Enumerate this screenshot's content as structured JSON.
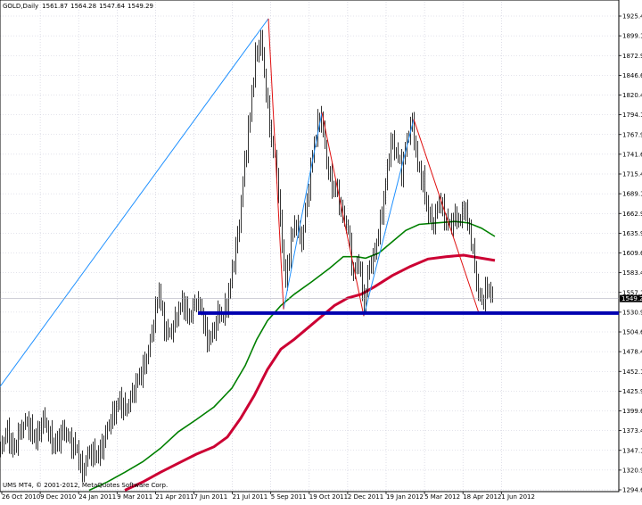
{
  "header": {
    "symbol_period": "GOLD,Daily",
    "ohlc": [
      "1561.87",
      "1564.28",
      "1547.64",
      "1549.29"
    ]
  },
  "footer": {
    "copyright": "UMS MT4, © 2001-2012, MetaQuotes Software Corp."
  },
  "colors": {
    "background": "#ffffff",
    "grid": "#c8c8d8",
    "candles": "#000000",
    "ma_fast": "#008000",
    "ma_slow": "#cc0033",
    "support_line": "#0000b0",
    "trend_up": "#1e90ff",
    "trend_down": "#e01010",
    "price_label_bg": "#000000",
    "price_label_text": "#ffffff"
  },
  "chart_data": {
    "type": "candlestick",
    "title": "GOLD,Daily",
    "price_ticks": [
      "1925.40",
      "1899.15",
      "1872.90",
      "1846.65",
      "1820.40",
      "1794.15",
      "1767.90",
      "1741.65",
      "1715.40",
      "1689.15",
      "1662.90",
      "1635.90",
      "1609.65",
      "1583.40",
      "1557.15",
      "1530.90",
      "1504.65",
      "1478.40",
      "1452.15",
      "1425.90",
      "1399.65",
      "1373.40",
      "1347.15",
      "1320.90",
      "1294.65"
    ],
    "ylim": [
      1294.65,
      1925.4
    ],
    "date_ticks": [
      "26 Oct 2010",
      "9 Dec 2010",
      "24 Jan 2011",
      "9 Mar 2011",
      "21 Apr 2011",
      "7 Jun 2011",
      "21 Jul 2011",
      "5 Sep 2011",
      "19 Oct 2011",
      "2 Dec 2011",
      "19 Jan 2012",
      "5 Mar 2012",
      "18 Apr 2012",
      "1 Jun 2012"
    ],
    "current_price": "1549.29",
    "grid": true,
    "price_path": [
      [
        0,
        1350
      ],
      [
        8,
        1372
      ],
      [
        15,
        1345
      ],
      [
        22,
        1375
      ],
      [
        30,
        1385
      ],
      [
        40,
        1360
      ],
      [
        48,
        1390
      ],
      [
        55,
        1368
      ],
      [
        62,
        1352
      ],
      [
        70,
        1375
      ],
      [
        78,
        1360
      ],
      [
        85,
        1350
      ],
      [
        92,
        1318
      ],
      [
        100,
        1345
      ],
      [
        110,
        1340
      ],
      [
        118,
        1368
      ],
      [
        126,
        1395
      ],
      [
        134,
        1412
      ],
      [
        142,
        1402
      ],
      [
        150,
        1430
      ],
      [
        158,
        1450
      ],
      [
        166,
        1478
      ],
      [
        172,
        1520
      ],
      [
        178,
        1560
      ],
      [
        183,
        1515
      ],
      [
        190,
        1500
      ],
      [
        198,
        1528
      ],
      [
        205,
        1545
      ],
      [
        212,
        1522
      ],
      [
        220,
        1550
      ],
      [
        226,
        1530
      ],
      [
        232,
        1495
      ],
      [
        238,
        1500
      ],
      [
        244,
        1530
      ],
      [
        250,
        1525
      ],
      [
        256,
        1555
      ],
      [
        262,
        1600
      ],
      [
        268,
        1650
      ],
      [
        274,
        1730
      ],
      [
        280,
        1795
      ],
      [
        286,
        1870
      ],
      [
        292,
        1895
      ],
      [
        298,
        1825
      ],
      [
        304,
        1760
      ],
      [
        310,
        1720
      ],
      [
        316,
        1620
      ],
      [
        320,
        1570
      ],
      [
        326,
        1630
      ],
      [
        332,
        1650
      ],
      [
        338,
        1625
      ],
      [
        344,
        1680
      ],
      [
        350,
        1740
      ],
      [
        356,
        1780
      ],
      [
        360,
        1795
      ],
      [
        366,
        1730
      ],
      [
        372,
        1700
      ],
      [
        378,
        1690
      ],
      [
        384,
        1660
      ],
      [
        390,
        1640
      ],
      [
        396,
        1580
      ],
      [
        402,
        1600
      ],
      [
        408,
        1540
      ],
      [
        414,
        1595
      ],
      [
        420,
        1610
      ],
      [
        426,
        1650
      ],
      [
        432,
        1700
      ],
      [
        438,
        1760
      ],
      [
        444,
        1745
      ],
      [
        450,
        1720
      ],
      [
        456,
        1760
      ],
      [
        462,
        1785
      ],
      [
        468,
        1725
      ],
      [
        474,
        1705
      ],
      [
        480,
        1660
      ],
      [
        486,
        1650
      ],
      [
        492,
        1680
      ],
      [
        498,
        1660
      ],
      [
        504,
        1645
      ],
      [
        510,
        1660
      ],
      [
        516,
        1650
      ],
      [
        520,
        1675
      ],
      [
        526,
        1640
      ],
      [
        532,
        1595
      ],
      [
        536,
        1555
      ],
      [
        540,
        1545
      ],
      [
        546,
        1565
      ],
      [
        552,
        1549
      ]
    ],
    "ma_fast": [
      [
        100,
        1294
      ],
      [
        120,
        1305
      ],
      [
        140,
        1318
      ],
      [
        160,
        1332
      ],
      [
        180,
        1350
      ],
      [
        200,
        1372
      ],
      [
        220,
        1388
      ],
      [
        240,
        1405
      ],
      [
        260,
        1430
      ],
      [
        275,
        1460
      ],
      [
        288,
        1495
      ],
      [
        300,
        1520
      ],
      [
        315,
        1540
      ],
      [
        330,
        1555
      ],
      [
        350,
        1572
      ],
      [
        370,
        1590
      ],
      [
        385,
        1605
      ],
      [
        400,
        1605
      ],
      [
        410,
        1603
      ],
      [
        425,
        1610
      ],
      [
        440,
        1625
      ],
      [
        455,
        1640
      ],
      [
        470,
        1648
      ],
      [
        490,
        1650
      ],
      [
        510,
        1652
      ],
      [
        525,
        1650
      ],
      [
        540,
        1643
      ],
      [
        555,
        1632
      ]
    ],
    "ma_slow": [
      [
        140,
        1294
      ],
      [
        160,
        1305
      ],
      [
        180,
        1318
      ],
      [
        200,
        1330
      ],
      [
        220,
        1342
      ],
      [
        240,
        1352
      ],
      [
        255,
        1365
      ],
      [
        270,
        1390
      ],
      [
        285,
        1420
      ],
      [
        300,
        1455
      ],
      [
        315,
        1482
      ],
      [
        330,
        1495
      ],
      [
        345,
        1510
      ],
      [
        360,
        1525
      ],
      [
        375,
        1540
      ],
      [
        390,
        1550
      ],
      [
        405,
        1555
      ],
      [
        420,
        1565
      ],
      [
        440,
        1580
      ],
      [
        460,
        1592
      ],
      [
        480,
        1602
      ],
      [
        500,
        1605
      ],
      [
        520,
        1607
      ],
      [
        540,
        1603
      ],
      [
        555,
        1600
      ]
    ],
    "support_line": {
      "x1": 222,
      "x2": 700,
      "y": 1530
    },
    "trend_up_lines": [
      [
        [
          0,
          1432
        ],
        [
          301,
          1922
        ]
      ],
      [
        [
          318,
          1535
        ],
        [
          361,
          1797
        ]
      ],
      [
        [
          408,
          1526
        ],
        [
          464,
          1788
        ]
      ]
    ],
    "trend_down_lines": [
      [
        [
          301,
          1922
        ],
        [
          318,
          1535
        ]
      ],
      [
        [
          361,
          1797
        ],
        [
          408,
          1526
        ]
      ],
      [
        [
          464,
          1788
        ],
        [
          537,
          1530
        ]
      ]
    ]
  }
}
